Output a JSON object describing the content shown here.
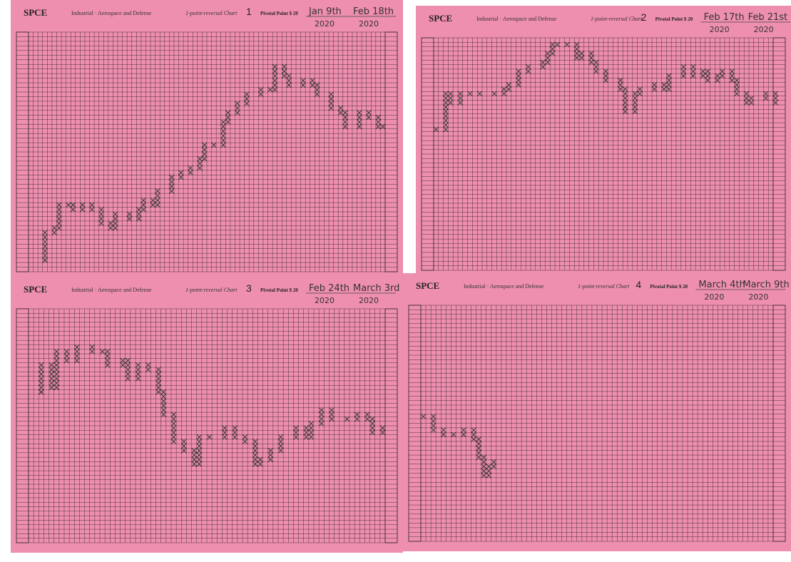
{
  "sheets": [
    {
      "ticker": "SPCE",
      "sector": "Industrial · Aerospace and Defense",
      "chart_kind": "1-point-reversal Chart",
      "number": "1",
      "pivot_label": "Pivotal Point $ 20",
      "start_date": "Jan 9th",
      "start_year": "2020",
      "end_date": "Feb 18th",
      "end_year": "2020",
      "trace": {
        "x": [
          3,
          3,
          5,
          6,
          8,
          9,
          11,
          13,
          15,
          17,
          18,
          21,
          23,
          24,
          26,
          27,
          30,
          32,
          34,
          36,
          37,
          39,
          41,
          42,
          44,
          46,
          49,
          51,
          52,
          54,
          55,
          58,
          60,
          61,
          64,
          66,
          67,
          70,
          72,
          74,
          75
        ],
        "values": [
          2,
          8,
          9,
          14,
          14,
          13,
          14,
          13,
          10,
          9,
          12,
          11,
          13,
          15,
          14,
          17,
          20,
          21,
          22,
          24,
          27,
          27,
          32,
          34,
          36,
          38,
          39,
          39,
          44,
          42,
          40,
          41,
          40,
          38,
          35,
          34,
          31,
          34,
          33,
          31,
          31
        ]
      }
    },
    {
      "ticker": "SPCE",
      "sector": "Industrial · Aerospace and Defense",
      "chart_kind": "1-point-reversal Chart",
      "number": "2",
      "pivot_label": "Pivotal Point $ 20",
      "start_date": "Feb 17th",
      "start_year": "2020",
      "end_date": "Feb 21st",
      "end_year": "2020",
      "trace": {
        "x": [
          0,
          2,
          3,
          5,
          7,
          9,
          12,
          14,
          15,
          17,
          19,
          22,
          23,
          24,
          25,
          27,
          29,
          30,
          32,
          33,
          35,
          38,
          39,
          41,
          42,
          45,
          47,
          48,
          51,
          53,
          55,
          56,
          58,
          59,
          61,
          62,
          64,
          65,
          68,
          70
        ],
        "values": [
          31,
          39,
          37,
          39,
          39,
          39,
          39,
          40,
          41,
          44,
          45,
          46,
          48,
          50,
          50,
          50,
          47,
          48,
          46,
          44,
          42,
          40,
          35,
          39,
          40,
          41,
          40,
          43,
          45,
          43,
          44,
          42,
          43,
          44,
          42,
          39,
          37,
          38,
          39,
          37
        ]
      }
    },
    {
      "ticker": "SPCE",
      "sector": "Industrial · Aerospace and Defense",
      "chart_kind": "1-point-reversal Chart",
      "number": "3",
      "pivot_label": "Pivotal Point $ 20",
      "start_date": "Feb 24th",
      "start_year": "2020",
      "end_date": "March 3rd",
      "end_year": "2020",
      "trace": {
        "x": [
          2,
          2,
          4,
          5,
          7,
          9,
          12,
          14,
          15,
          18,
          19,
          21,
          23,
          25,
          26,
          28,
          30,
          32,
          33,
          35,
          38,
          40,
          42,
          44,
          45,
          47,
          49,
          52,
          54,
          55,
          57,
          59,
          62,
          64,
          66,
          67,
          69
        ],
        "values": [
          33,
          39,
          34,
          42,
          40,
          43,
          42,
          42,
          39,
          40,
          36,
          39,
          38,
          33,
          28,
          22,
          20,
          17,
          23,
          23,
          25,
          23,
          22,
          17,
          18,
          20,
          23,
          25,
          23,
          26,
          29,
          27,
          27,
          28,
          27,
          24,
          25
        ]
      }
    },
    {
      "ticker": "SPCE",
      "sector": "Industrial · Aerospace and Defense",
      "chart_kind": "1-point-reversal Chart",
      "number": "4",
      "pivot_label": "Pivotal Point $ 20",
      "start_date": "March 4th",
      "start_year": "2020",
      "end_date": "March 9th",
      "end_year": "2020",
      "trace": {
        "x": [
          0,
          2,
          4,
          6,
          8,
          10,
          11,
          12,
          13,
          14
        ],
        "values": [
          27,
          24,
          23,
          23,
          24,
          22,
          18,
          14,
          16,
          17
        ]
      }
    }
  ]
}
